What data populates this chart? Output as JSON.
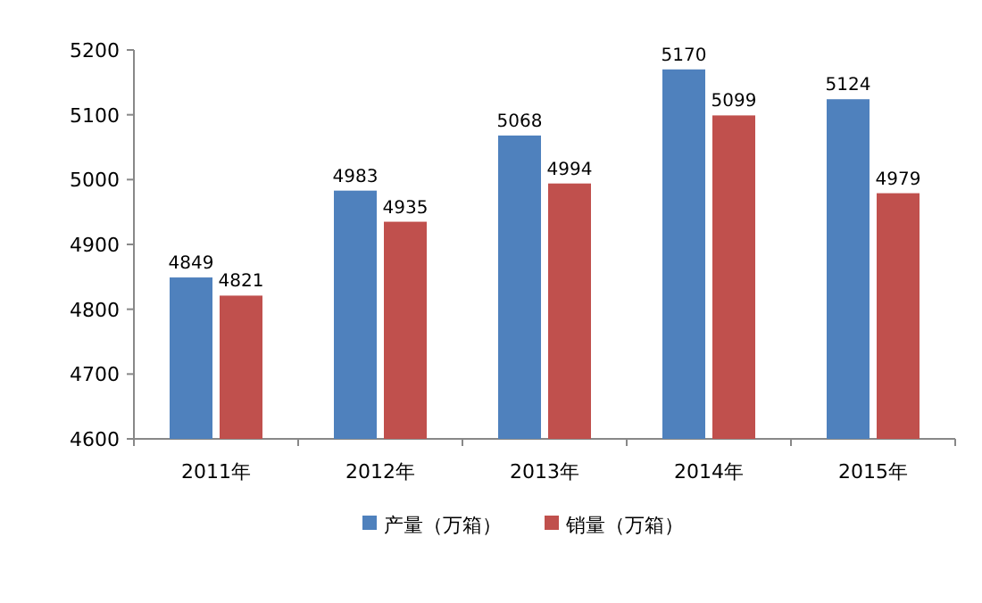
{
  "chart_data": {
    "type": "bar",
    "categories": [
      "2011年",
      "2012年",
      "2013年",
      "2014年",
      "2015年"
    ],
    "series": [
      {
        "name": "产量（万箱）",
        "color": "#4f81bd",
        "values": [
          4849,
          4983,
          5068,
          5170,
          5124
        ]
      },
      {
        "name": "销量（万箱）",
        "color": "#c0504d",
        "values": [
          4821,
          4935,
          4994,
          5099,
          4979
        ]
      }
    ],
    "ylim": [
      4600,
      5200
    ],
    "yticks": [
      4600,
      4700,
      4800,
      4900,
      5000,
      5100,
      5200
    ],
    "data_labels": true,
    "legend": "bottom",
    "grid": false
  }
}
